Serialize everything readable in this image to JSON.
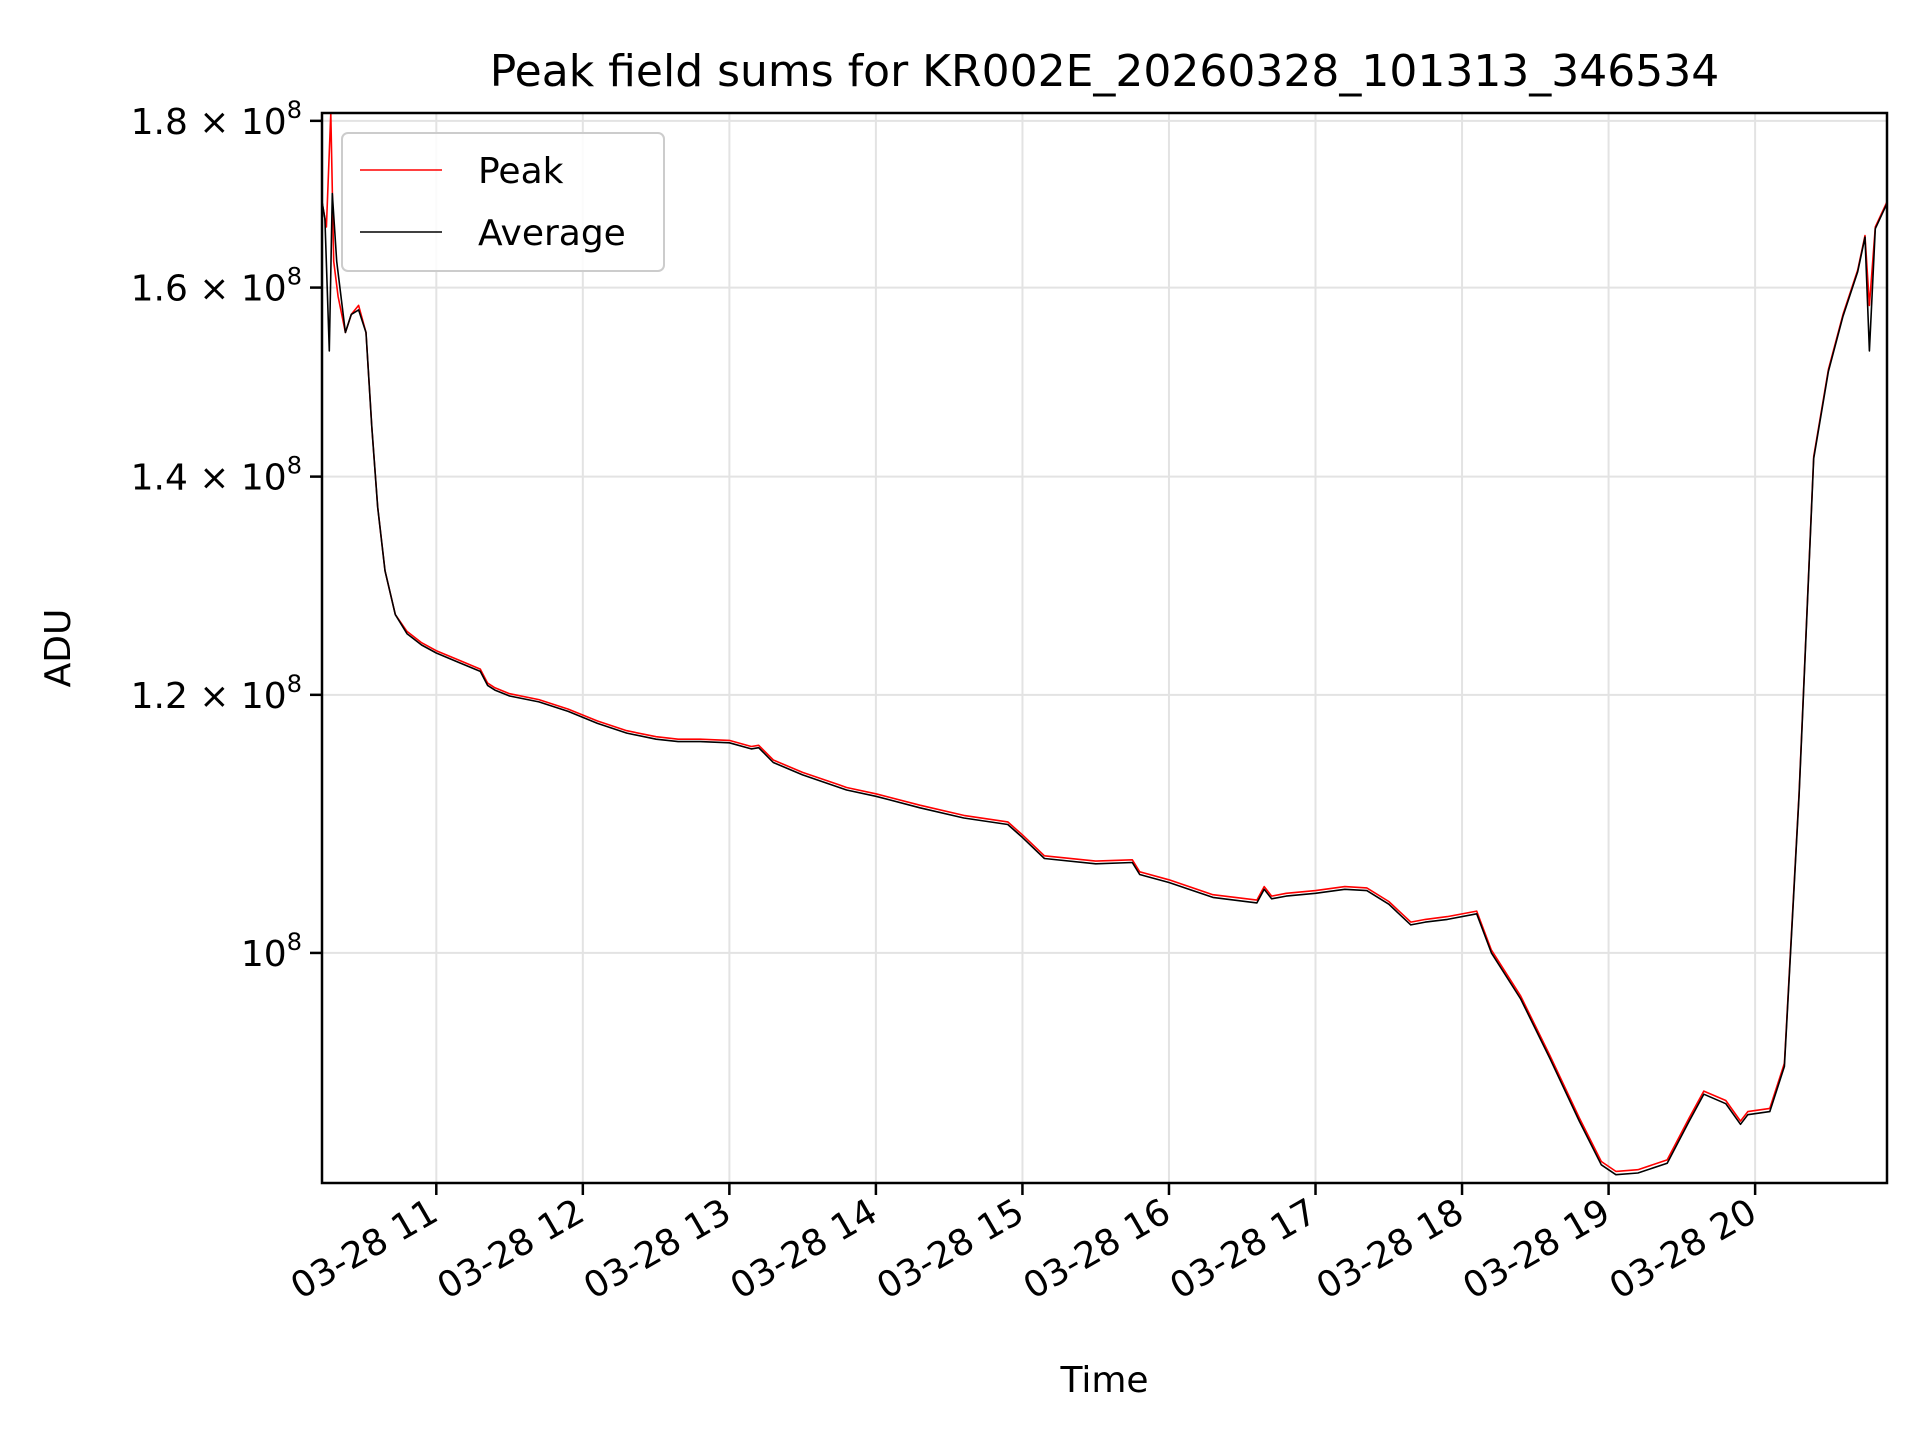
{
  "chart_data": {
    "type": "line",
    "title": "Peak field sums for KR002E_20260328_101313_346534",
    "xlabel": "Time",
    "ylabel": "ADU",
    "yscale": "log",
    "ylim": [
      85000000,
      181000000
    ],
    "xlim": [
      10.22,
      20.9
    ],
    "grid": true,
    "legend_position": "top-left",
    "x_tick_values": [
      11,
      12,
      13,
      14,
      15,
      16,
      17,
      18,
      19,
      20
    ],
    "x_tick_labels": [
      "03-28 11",
      "03-28 12",
      "03-28 13",
      "03-28 14",
      "03-28 15",
      "03-28 16",
      "03-28 17",
      "03-28 18",
      "03-28 19",
      "03-28 20"
    ],
    "y_ticks": [
      {
        "value": 100000000,
        "mantissa": "",
        "base": "10",
        "exp": "8"
      },
      {
        "value": 120000000,
        "mantissa": "1.2",
        "base": "10",
        "exp": "8"
      },
      {
        "value": 140000000,
        "mantissa": "1.4",
        "base": "10",
        "exp": "8"
      },
      {
        "value": 160000000,
        "mantissa": "1.6",
        "base": "10",
        "exp": "8"
      },
      {
        "value": 180000000,
        "mantissa": "1.8",
        "base": "10",
        "exp": "8"
      }
    ],
    "series": [
      {
        "name": "Peak",
        "color": "#ff0000",
        "x": [
          10.22,
          10.25,
          10.28,
          10.3,
          10.33,
          10.38,
          10.42,
          10.47,
          10.52,
          10.56,
          10.6,
          10.65,
          10.72,
          10.8,
          10.9,
          11.0,
          11.15,
          11.3,
          11.35,
          11.4,
          11.5,
          11.7,
          11.9,
          12.1,
          12.3,
          12.5,
          12.65,
          12.7,
          12.8,
          13.0,
          13.15,
          13.2,
          13.3,
          13.5,
          13.75,
          13.8,
          14.0,
          14.3,
          14.6,
          14.9,
          15.0,
          15.15,
          15.5,
          15.75,
          15.8,
          16.0,
          16.3,
          16.6,
          16.65,
          16.7,
          16.8,
          17.0,
          17.2,
          17.35,
          17.5,
          17.65,
          17.75,
          17.9,
          18.1,
          18.2,
          18.4,
          18.6,
          18.8,
          18.95,
          19.05,
          19.2,
          19.4,
          19.55,
          19.65,
          19.8,
          19.9,
          19.95,
          20.1,
          20.2,
          20.3,
          20.4,
          20.5,
          20.6,
          20.7,
          20.75,
          20.78,
          20.82,
          20.9
        ],
        "y": [
          170000000,
          167000000,
          181000000,
          163000000,
          159000000,
          155000000,
          157000000,
          158000000,
          155000000,
          145000000,
          137000000,
          131000000,
          127000000,
          125500000,
          124500000,
          123800000,
          123000000,
          122200000,
          121000000,
          120600000,
          120100000,
          119600000,
          118800000,
          117800000,
          117000000,
          116500000,
          116300000,
          116300000,
          116300000,
          116200000,
          115700000,
          115800000,
          114600000,
          113600000,
          112600000,
          112400000,
          111900000,
          111000000,
          110200000,
          109700000,
          108700000,
          107100000,
          106700000,
          106800000,
          105900000,
          105300000,
          104200000,
          103800000,
          104800000,
          104100000,
          104300000,
          104500000,
          104800000,
          104700000,
          103700000,
          102200000,
          102400000,
          102600000,
          103000000,
          100200000,
          97000000,
          93000000,
          89000000,
          86300000,
          85700000,
          85800000,
          86400000,
          89000000,
          90700000,
          90100000,
          88800000,
          89400000,
          89600000,
          92500000,
          112000000,
          142000000,
          151000000,
          157000000,
          162000000,
          166000000,
          158000000,
          167000000,
          170000000
        ]
      },
      {
        "name": "Average",
        "color": "#000000",
        "x": [
          10.22,
          10.24,
          10.27,
          10.29,
          10.32,
          10.38,
          10.42,
          10.47,
          10.52,
          10.56,
          10.6,
          10.65,
          10.72,
          10.8,
          10.9,
          11.0,
          11.15,
          11.3,
          11.35,
          11.4,
          11.5,
          11.7,
          11.9,
          12.1,
          12.3,
          12.5,
          12.65,
          12.7,
          12.8,
          13.0,
          13.15,
          13.2,
          13.3,
          13.5,
          13.75,
          13.8,
          14.0,
          14.3,
          14.6,
          14.9,
          15.0,
          15.15,
          15.5,
          15.75,
          15.8,
          16.0,
          16.3,
          16.6,
          16.65,
          16.7,
          16.8,
          17.0,
          17.2,
          17.35,
          17.5,
          17.65,
          17.75,
          17.9,
          18.1,
          18.2,
          18.4,
          18.6,
          18.8,
          18.95,
          19.05,
          19.2,
          19.4,
          19.55,
          19.65,
          19.8,
          19.9,
          19.95,
          20.1,
          20.2,
          20.3,
          20.4,
          20.5,
          20.6,
          20.7,
          20.75,
          20.78,
          20.82,
          20.9
        ],
        "y": [
          170000000,
          168000000,
          153000000,
          171000000,
          163000000,
          155000000,
          157000000,
          157500000,
          155000000,
          145000000,
          137000000,
          131000000,
          127000000,
          125300000,
          124300000,
          123600000,
          122800000,
          122000000,
          120800000,
          120400000,
          119900000,
          119400000,
          118600000,
          117600000,
          116800000,
          116300000,
          116100000,
          116100000,
          116100000,
          116000000,
          115500000,
          115600000,
          114400000,
          113400000,
          112400000,
          112200000,
          111700000,
          110800000,
          110000000,
          109500000,
          108500000,
          106900000,
          106500000,
          106600000,
          105700000,
          105100000,
          104000000,
          103600000,
          104600000,
          103900000,
          104100000,
          104300000,
          104600000,
          104500000,
          103500000,
          102000000,
          102200000,
          102400000,
          102800000,
          100000000,
          96800000,
          92800000,
          88800000,
          86100000,
          85500000,
          85600000,
          86200000,
          88800000,
          90500000,
          89900000,
          88600000,
          89200000,
          89400000,
          92300000,
          111800000,
          141800000,
          150800000,
          156800000,
          161800000,
          165800000,
          153000000,
          166800000,
          169800000
        ]
      }
    ]
  }
}
